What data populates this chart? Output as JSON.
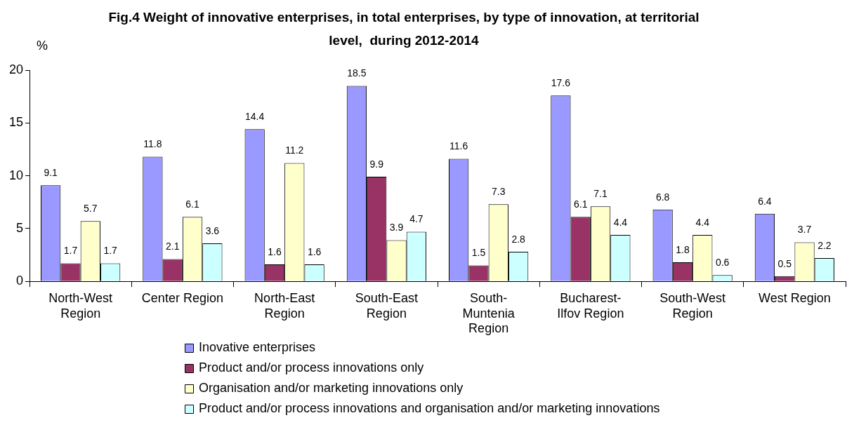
{
  "chart_data": {
    "type": "bar",
    "title": "Fig.4 Weight of innovative enterprises, in total enterprises, by type of innovation, at territorial level,  during 2012-2014",
    "ylabel": "%",
    "categories": [
      "North-West Region",
      "Center Region",
      "North-East Region",
      "South-East Region",
      "South-Muntenia Region",
      "Bucharest-Ilfov Region",
      "South-West Region",
      "West Region"
    ],
    "series": [
      {
        "name": "Inovative enterprises",
        "color": "#9999ff",
        "values": [
          9.1,
          11.8,
          14.4,
          18.5,
          11.6,
          17.6,
          6.8,
          6.4
        ]
      },
      {
        "name": "Product and/or process innovations only",
        "color": "#993366",
        "values": [
          1.7,
          2.1,
          1.6,
          9.9,
          1.5,
          6.1,
          1.8,
          0.5
        ]
      },
      {
        "name": "Organisation and/or marketing innovations only",
        "color": "#ffffcc",
        "values": [
          5.7,
          6.1,
          11.2,
          3.9,
          7.3,
          7.1,
          4.4,
          3.7
        ]
      },
      {
        "name": "Product and/or process innovations and organisation and/or marketing innovations",
        "color": "#ccffff",
        "values": [
          1.7,
          3.6,
          1.6,
          4.7,
          2.8,
          4.4,
          0.6,
          2.2
        ]
      }
    ],
    "ylim": [
      0,
      20
    ],
    "yticks": [
      0,
      5,
      10,
      15,
      20
    ],
    "grid": false,
    "legend": "bottom",
    "data_labels": true
  }
}
